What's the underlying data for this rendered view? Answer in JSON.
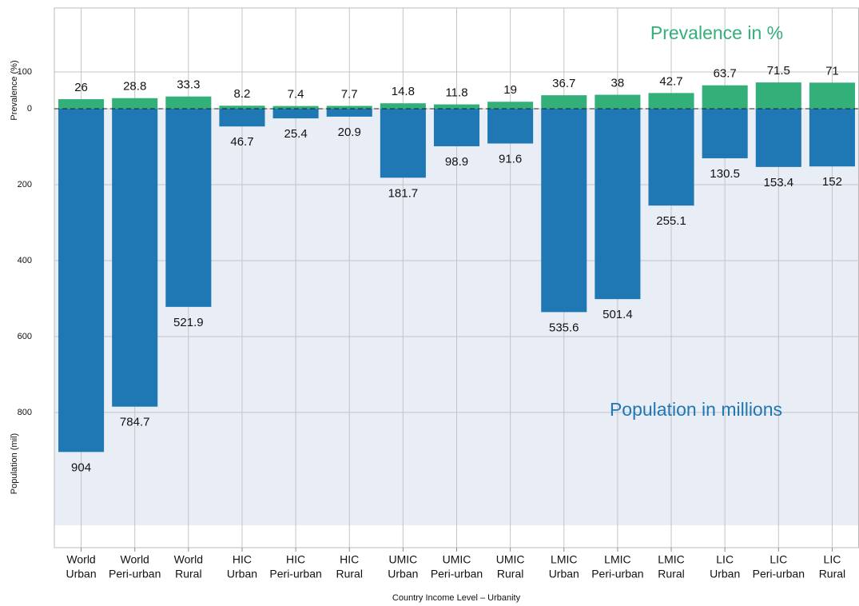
{
  "chart_data": {
    "type": "mirrored_bar",
    "categories": [
      [
        "World",
        "Urban"
      ],
      [
        "World",
        "Peri-urban"
      ],
      [
        "World",
        "Rural"
      ],
      [
        "HIC",
        "Urban"
      ],
      [
        "HIC",
        "Peri-urban"
      ],
      [
        "HIC",
        "Rural"
      ],
      [
        "UMIC",
        "Urban"
      ],
      [
        "UMIC",
        "Peri-urban"
      ],
      [
        "UMIC",
        "Rural"
      ],
      [
        "LMIC",
        "Urban"
      ],
      [
        "LMIC",
        "Peri-urban"
      ],
      [
        "LMIC",
        "Rural"
      ],
      [
        "LIC",
        "Urban"
      ],
      [
        "LIC",
        "Peri-urban"
      ],
      [
        "LIC",
        "Rural"
      ]
    ],
    "series": [
      {
        "name": "Prevalence in %",
        "color": "#33b07a",
        "axis": "y",
        "values": [
          26,
          28.8,
          33.3,
          8.2,
          7.4,
          7.7,
          14.8,
          11.8,
          19,
          36.7,
          38,
          42.7,
          63.7,
          71.5,
          71
        ]
      },
      {
        "name": "Population in millions",
        "color": "#1f77b4",
        "axis": "y2",
        "values": [
          904,
          784.7,
          521.9,
          46.7,
          25.4,
          20.9,
          181.7,
          98.9,
          91.6,
          535.6,
          501.4,
          255.1,
          130.5,
          153.4,
          152
        ]
      }
    ],
    "ylabel": "Prevalence (%)",
    "y2label": "Population (mil)",
    "xlabel": "Country Income Level – Urbanity",
    "ylim": [
      0,
      274
    ],
    "yticks": [
      0,
      100
    ],
    "y2lim": [
      0,
      1156
    ],
    "y2ticks": [
      200,
      400,
      600,
      800
    ],
    "grid": true
  }
}
